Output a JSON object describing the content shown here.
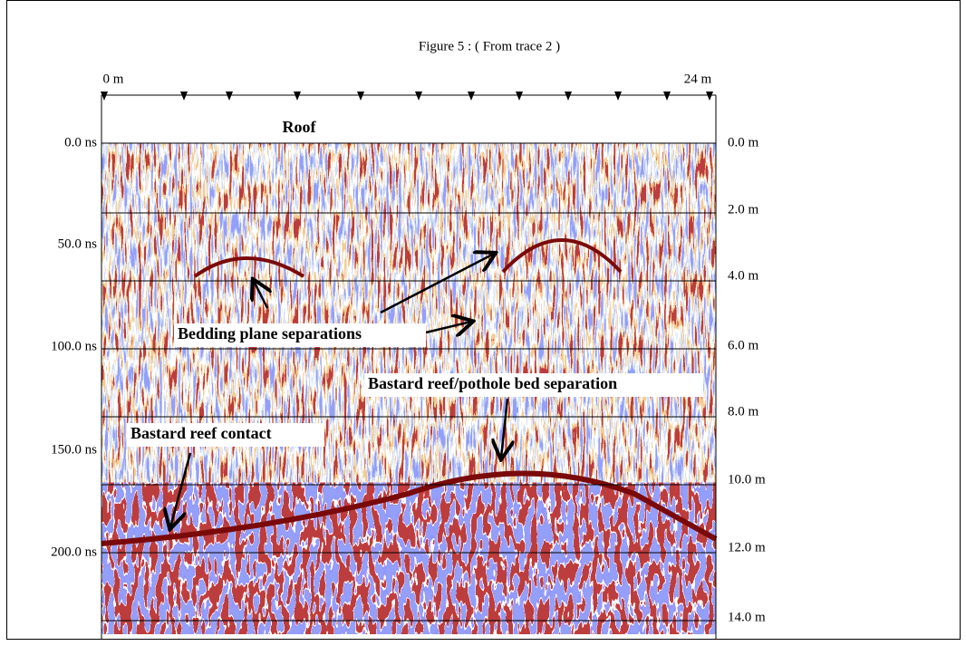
{
  "title": "Figure 5 :  ( From trace 2 )",
  "top_axis": {
    "labels": [
      "0 m",
      "24 m"
    ]
  },
  "left_axis": {
    "labels": [
      "0.0 ns",
      "50.0 ns",
      "100.0 ns",
      "150.0 ns",
      "200.0 ns"
    ]
  },
  "right_axis": {
    "labels": [
      "0.0 m",
      "2.0 m",
      "4.0 m",
      "6.0 m",
      "8.0 m",
      "10.0 m",
      "12.0 m",
      "14.0 m"
    ]
  },
  "annotations": [
    "Roof",
    "Bedding plane separations",
    "Bastard reef/pothole bed separation",
    "Bastard reef contact"
  ]
}
